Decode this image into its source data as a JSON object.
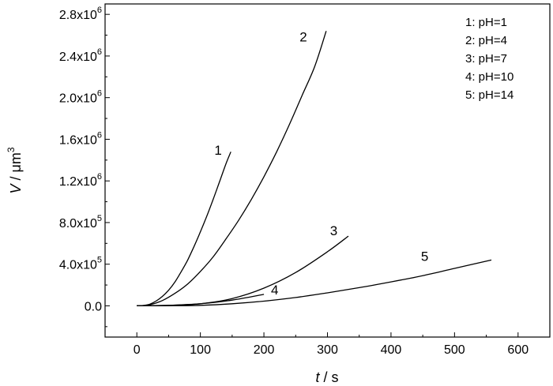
{
  "chart_data": {
    "type": "line",
    "xlabel": {
      "italic": "t",
      "rest": " / s"
    },
    "ylabel": {
      "italic": "V",
      "rest": " / μm",
      "sup": "3"
    },
    "xlim": [
      -50,
      650
    ],
    "ylim": [
      -300000,
      2900000
    ],
    "x_ticks": [
      0,
      100,
      200,
      300,
      400,
      500,
      600
    ],
    "x_tick_labels": [
      "0",
      "100",
      "200",
      "300",
      "400",
      "500",
      "600"
    ],
    "y_ticks": [
      0,
      400000,
      800000,
      1200000,
      1600000,
      2000000,
      2400000,
      2800000
    ],
    "y_tick_labels": [
      {
        "base": "0.0",
        "exp": ""
      },
      {
        "base": "4.0x10",
        "exp": "5"
      },
      {
        "base": "8.0x10",
        "exp": "5"
      },
      {
        "base": "1.2x10",
        "exp": "6"
      },
      {
        "base": "1.6x10",
        "exp": "6"
      },
      {
        "base": "2.0x10",
        "exp": "6"
      },
      {
        "base": "2.4x10",
        "exp": "6"
      },
      {
        "base": "2.8x10",
        "exp": "6"
      }
    ],
    "grid": false,
    "legend_position": "top-right",
    "legend": [
      "1: pH=1",
      "2: pH=4",
      "3: pH=7",
      "4: pH=10",
      "5: pH=14"
    ],
    "series": [
      {
        "label": "1",
        "color": "#000000",
        "x": [
          0,
          10,
          20,
          30,
          40,
          50,
          60,
          70,
          80,
          90,
          100,
          110,
          120,
          130,
          140,
          148
        ],
        "y": [
          0,
          3000,
          15000,
          45000,
          90000,
          150000,
          230000,
          330000,
          440000,
          570000,
          710000,
          860000,
          1020000,
          1190000,
          1360000,
          1480000
        ]
      },
      {
        "label": "2",
        "color": "#000000",
        "x": [
          0,
          20,
          40,
          60,
          80,
          100,
          120,
          140,
          160,
          180,
          200,
          220,
          240,
          260,
          280,
          298
        ],
        "y": [
          0,
          10000,
          50000,
          120000,
          210000,
          330000,
          470000,
          640000,
          820000,
          1020000,
          1240000,
          1480000,
          1740000,
          2020000,
          2300000,
          2640000
        ]
      },
      {
        "label": "3",
        "color": "#000000",
        "x": [
          0,
          50,
          100,
          150,
          200,
          250,
          300,
          333
        ],
        "y": [
          0,
          5000,
          20000,
          70000,
          170000,
          320000,
          520000,
          670000
        ]
      },
      {
        "label": "4",
        "color": "#000000",
        "x": [
          0,
          50,
          100,
          150,
          200
        ],
        "y": [
          0,
          5000,
          20000,
          55000,
          110000
        ]
      },
      {
        "label": "5",
        "color": "#000000",
        "x": [
          0,
          50,
          100,
          150,
          200,
          250,
          300,
          350,
          400,
          450,
          500,
          558
        ],
        "y": [
          0,
          1000,
          5000,
          20000,
          45000,
          80000,
          125000,
          175000,
          230000,
          290000,
          360000,
          440000
        ]
      }
    ],
    "curve_labels": [
      {
        "text": "1",
        "x": 128,
        "y": 1450000
      },
      {
        "text": "2",
        "x": 262,
        "y": 2540000
      },
      {
        "text": "3",
        "x": 310,
        "y": 680000
      },
      {
        "text": "4",
        "x": 217,
        "y": 110000
      },
      {
        "text": "5",
        "x": 453,
        "y": 430000
      }
    ]
  }
}
